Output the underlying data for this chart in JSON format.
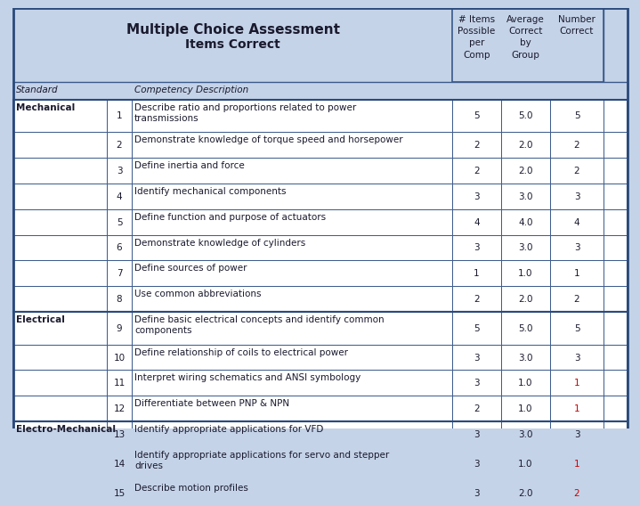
{
  "title_line1": "Multiple Choice Assessment",
  "title_line2": "Items Correct",
  "header_bg": "#c5d3e8",
  "row_bg_white": "#ffffff",
  "row_bg_light": "#eef2f8",
  "border_color": "#3a5a8c",
  "text_color_dark": "#1a1a2e",
  "text_color_blue": "#1a3a6e",
  "col_headers": [
    "# Items\nPossible\nper\nComp",
    "Average\nCorrect\nby\nGroup",
    "Number\nCorrect"
  ],
  "row_header_standard": "Standard",
  "row_header_desc": "Competency Description",
  "rows": [
    {
      "standard": "Mechanical",
      "num": 1,
      "desc": "Describe ratio and proportions related to power\ntransmissions",
      "items": 5,
      "avg": "5.0",
      "correct": 5
    },
    {
      "standard": "",
      "num": 2,
      "desc": "Demonstrate knowledge of torque speed and horsepower",
      "items": 2,
      "avg": "2.0",
      "correct": 2
    },
    {
      "standard": "",
      "num": 3,
      "desc": "Define inertia and force",
      "items": 2,
      "avg": "2.0",
      "correct": 2
    },
    {
      "standard": "",
      "num": 4,
      "desc": "Identify mechanical components",
      "items": 3,
      "avg": "3.0",
      "correct": 3
    },
    {
      "standard": "",
      "num": 5,
      "desc": "Define function and purpose of actuators",
      "items": 4,
      "avg": "4.0",
      "correct": 4
    },
    {
      "standard": "",
      "num": 6,
      "desc": "Demonstrate knowledge of cylinders",
      "items": 3,
      "avg": "3.0",
      "correct": 3
    },
    {
      "standard": "",
      "num": 7,
      "desc": "Define sources of power",
      "items": 1,
      "avg": "1.0",
      "correct": 1
    },
    {
      "standard": "",
      "num": 8,
      "desc": "Use common abbreviations",
      "items": 2,
      "avg": "2.0",
      "correct": 2
    },
    {
      "standard": "Electrical",
      "num": 9,
      "desc": "Define basic electrical concepts and identify common\ncomponents",
      "items": 5,
      "avg": "5.0",
      "correct": 5
    },
    {
      "standard": "",
      "num": 10,
      "desc": "Define relationship of coils to electrical power",
      "items": 3,
      "avg": "3.0",
      "correct": 3
    },
    {
      "standard": "",
      "num": 11,
      "desc": "Interpret wiring schematics and ANSI symbology",
      "items": 3,
      "avg": "1.0",
      "correct": 1
    },
    {
      "standard": "",
      "num": 12,
      "desc": "Differentiate between PNP & NPN",
      "items": 2,
      "avg": "1.0",
      "correct": 1
    },
    {
      "standard": "Electro-Mechanical",
      "num": 13,
      "desc": "Identify appropriate applications for VFD",
      "items": 3,
      "avg": "3.0",
      "correct": 3
    },
    {
      "standard": "",
      "num": 14,
      "desc": "Identify appropriate applications for servo and stepper\ndrives",
      "items": 3,
      "avg": "1.0",
      "correct": 1
    },
    {
      "standard": "",
      "num": 15,
      "desc": "Describe motion profiles",
      "items": 3,
      "avg": "2.0",
      "correct": 2
    }
  ]
}
